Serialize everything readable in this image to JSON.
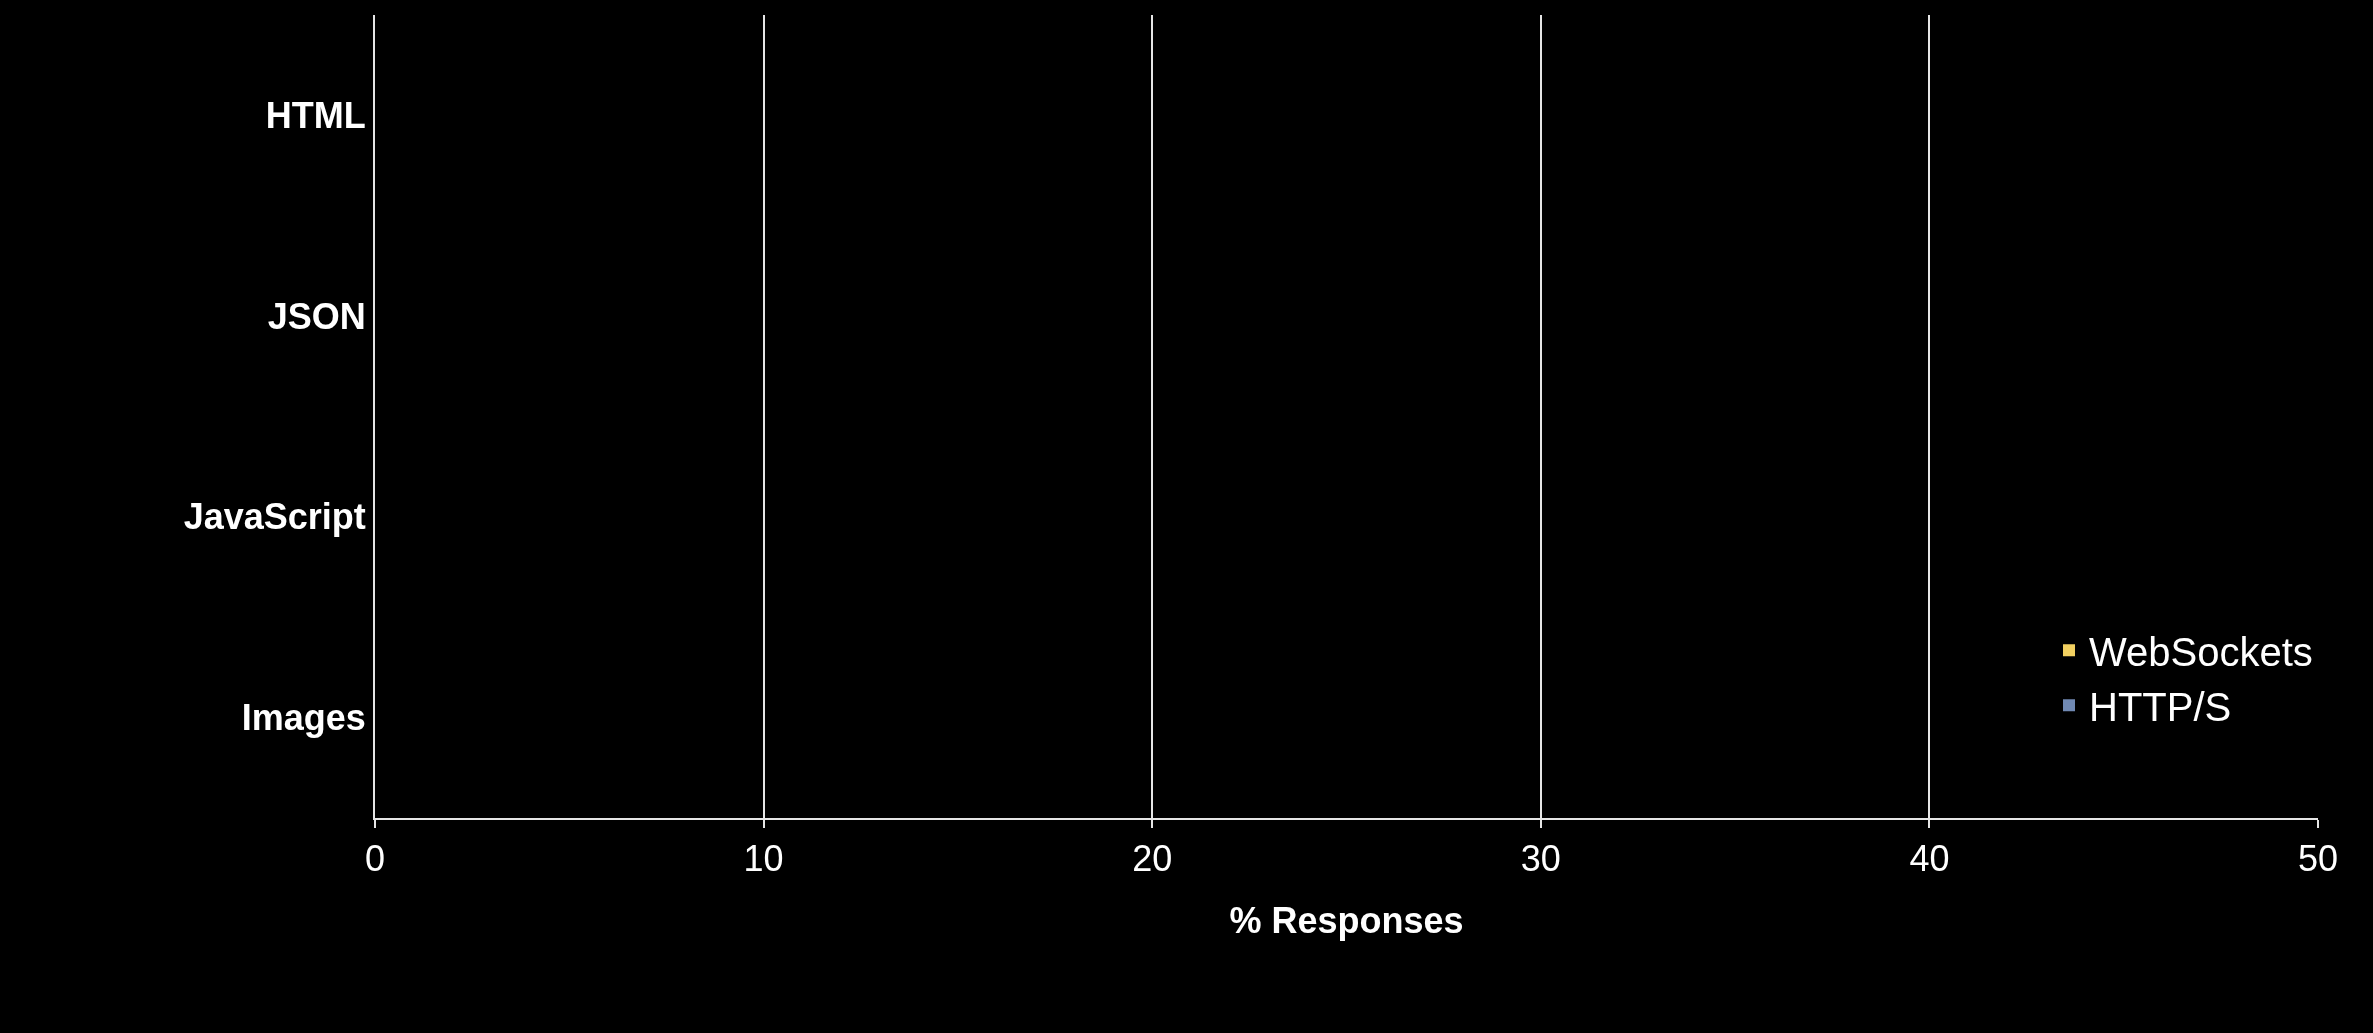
{
  "chart_data": {
    "type": "bar",
    "orientation": "horizontal",
    "xlabel": "% Responses",
    "categories": [
      "HTML",
      "JSON",
      "JavaScript",
      "Images"
    ],
    "series": [
      {
        "name": "WebSockets",
        "color": "#f2d060",
        "values": [
          null,
          null,
          null,
          null
        ]
      },
      {
        "name": "HTTP/S",
        "color": "#7089b3",
        "values": [
          null,
          null,
          null,
          null
        ]
      }
    ],
    "xlim": [
      0,
      50
    ],
    "xticks": [
      0,
      10,
      20,
      30,
      40,
      50
    ],
    "grid": "x",
    "legend": "bottom right"
  }
}
